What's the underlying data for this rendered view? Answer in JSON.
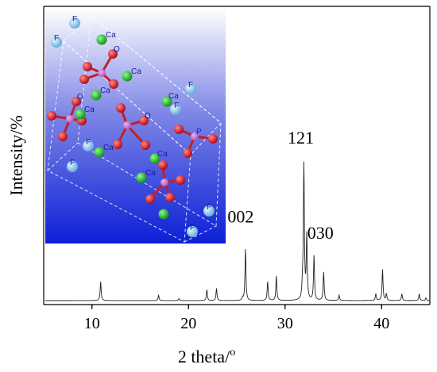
{
  "chart_data": {
    "type": "line",
    "xlabel": "2 theta/",
    "xlabel_superscript": "o",
    "ylabel": "Intensity/%",
    "xlim": [
      5,
      45
    ],
    "x_ticks": [
      10,
      20,
      30,
      40
    ],
    "y_ticks_labeled": false,
    "baseline": 0.02,
    "peaks": [
      {
        "x": 10.9,
        "y": 0.14
      },
      {
        "x": 16.9,
        "y": 0.04
      },
      {
        "x": 19.0,
        "y": 0.015
      },
      {
        "x": 21.9,
        "y": 0.08
      },
      {
        "x": 22.9,
        "y": 0.09
      },
      {
        "x": 25.6,
        "y": 0.02
      },
      {
        "x": 25.9,
        "y": 0.38
      },
      {
        "x": 28.2,
        "y": 0.14
      },
      {
        "x": 29.1,
        "y": 0.18
      },
      {
        "x": 31.8,
        "y": 0.085
      },
      {
        "x": 31.95,
        "y": 1.0
      },
      {
        "x": 32.25,
        "y": 0.47
      },
      {
        "x": 33.0,
        "y": 0.33
      },
      {
        "x": 34.0,
        "y": 0.21
      },
      {
        "x": 35.6,
        "y": 0.04
      },
      {
        "x": 39.4,
        "y": 0.05
      },
      {
        "x": 40.1,
        "y": 0.23
      },
      {
        "x": 40.5,
        "y": 0.05
      },
      {
        "x": 42.1,
        "y": 0.05
      },
      {
        "x": 43.9,
        "y": 0.05
      },
      {
        "x": 44.6,
        "y": 0.02
      }
    ],
    "annotations": [
      {
        "text": "002",
        "x": 25.9
      },
      {
        "text": "121",
        "x": 31.95
      },
      {
        "text": "030",
        "x": 33.0
      }
    ]
  },
  "inset": {
    "description_visible": "crystal structure",
    "atom_labels": {
      "fluorine": "F",
      "calcium": "Ca",
      "oxygen": "O",
      "phosphorus": "P"
    }
  }
}
